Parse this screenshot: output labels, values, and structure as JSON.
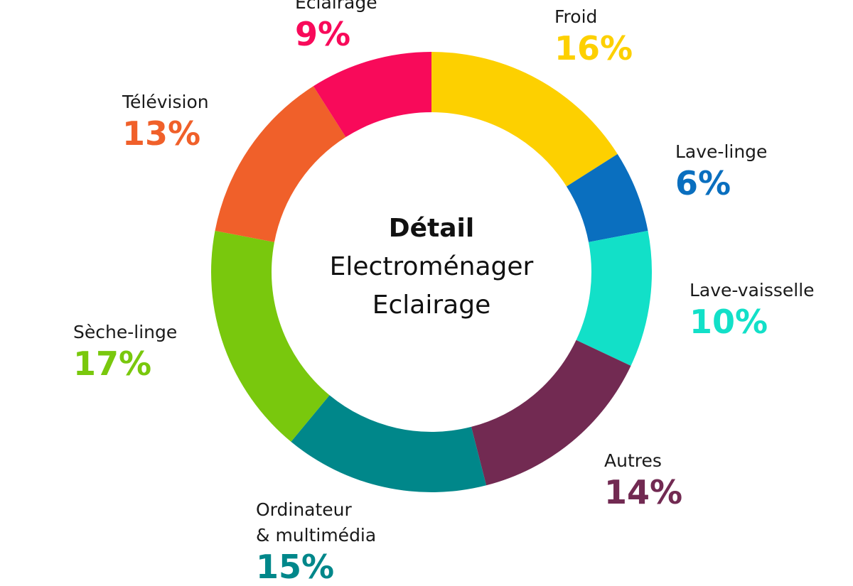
{
  "chart_data": {
    "type": "pie",
    "center_title": "Détail",
    "center_subtitle": [
      "Electroménager",
      "Eclairage"
    ],
    "categories": [
      "Froid",
      "Lave-linge",
      "Lave-vaisselle",
      "Autres",
      "Ordinateur\n& multimédia",
      "Sèche-linge",
      "Télévision",
      "Eclairage"
    ],
    "values": [
      16,
      6,
      10,
      14,
      15,
      17,
      13,
      9
    ],
    "value_labels": [
      "16%",
      "6%",
      "10%",
      "14%",
      "15%",
      "17%",
      "13%",
      "9%"
    ],
    "colors": [
      "#fdd000",
      "#0a6fbf",
      "#12e0c8",
      "#722a52",
      "#00878a",
      "#79c80d",
      "#f0602a",
      "#f80a5a"
    ]
  }
}
